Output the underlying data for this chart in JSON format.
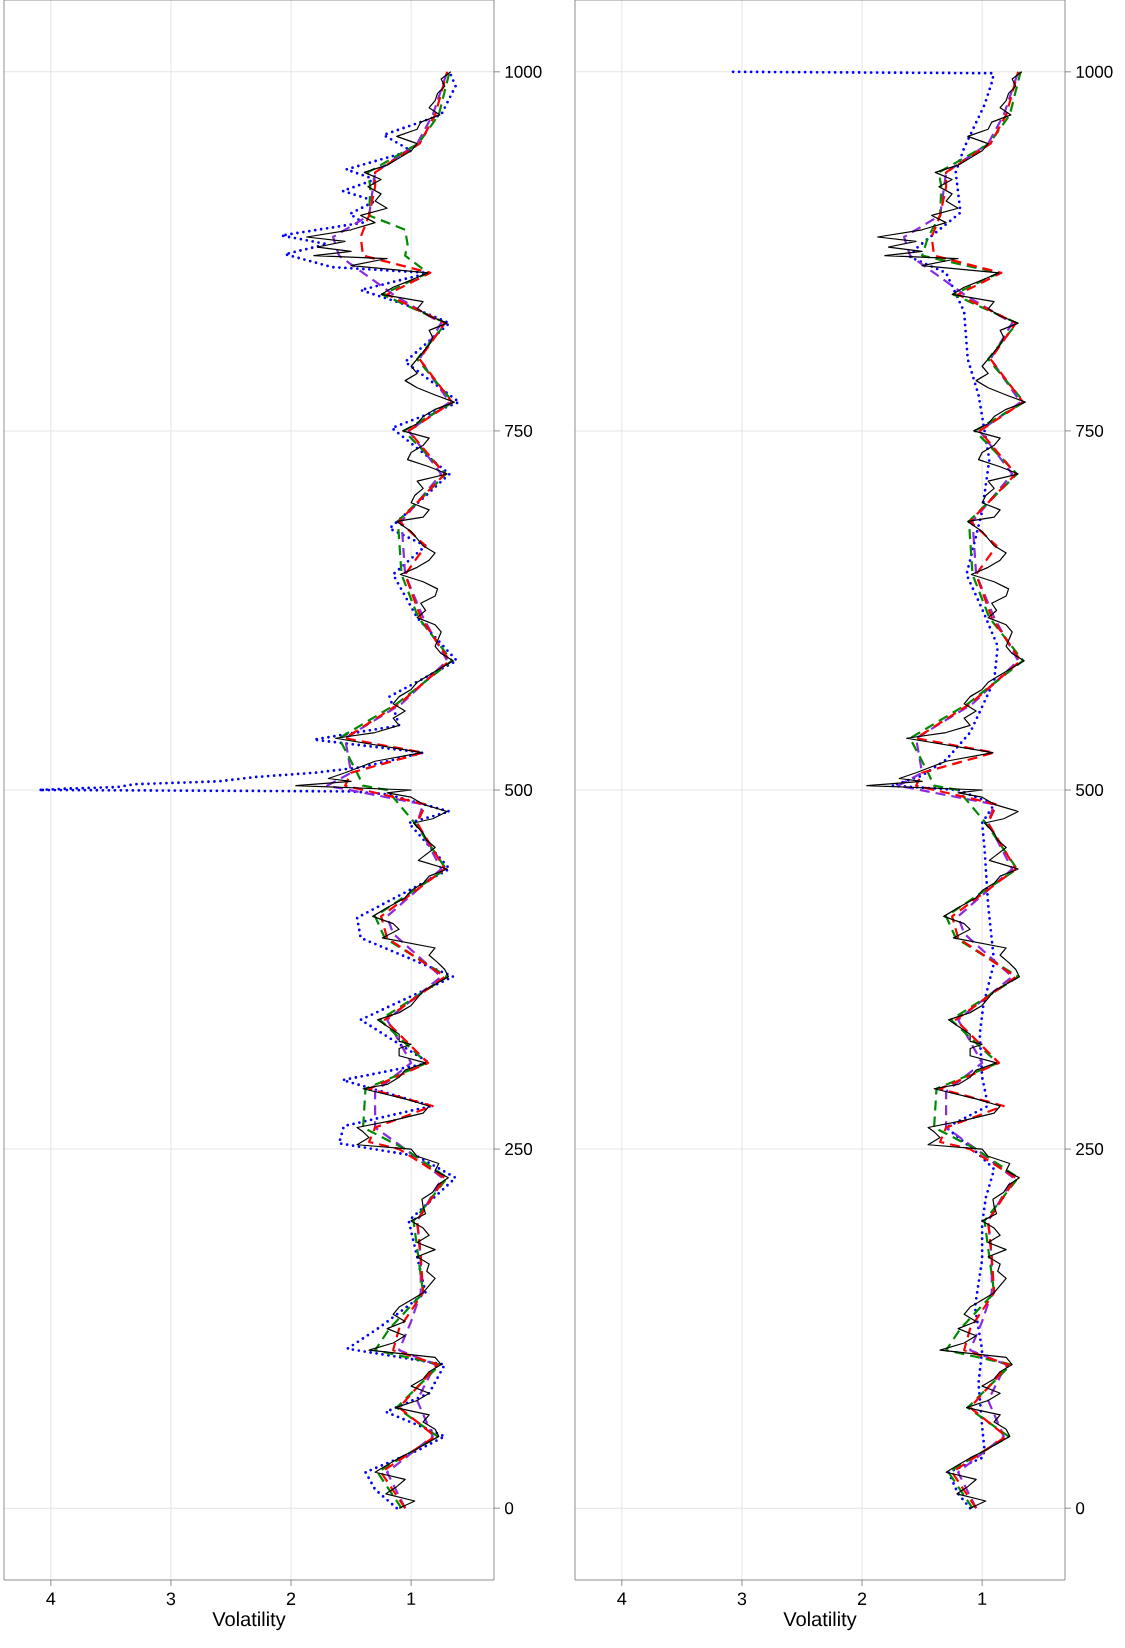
{
  "chart_data": [
    {
      "type": "line",
      "xlabel": "Volatility",
      "grid": true,
      "xlim": [
        4.39,
        0.31
      ],
      "ylim": [
        -50,
        1050
      ],
      "xticks": [
        1,
        2,
        3,
        4
      ],
      "yticks": [
        0,
        250,
        500,
        750,
        1000
      ],
      "series": [
        {
          "color": "#0000ff",
          "line_style": "dotted",
          "values": [
            0,
            13,
            25,
            40,
            50,
            67,
            80,
            100,
            111,
            126,
            150,
            175,
            200,
            230,
            245,
            254,
            266,
            280,
            298,
            310,
            340,
            370,
            397,
            411,
            445,
            477,
            485,
            497,
            499,
            500,
            501,
            502,
            504,
            506,
            509,
            512,
            516,
            520,
            526,
            535,
            545,
            565,
            590,
            620,
            650,
            670,
            682,
            720,
            752,
            770,
            798,
            825,
            838,
            848,
            860,
            864,
            873,
            880,
            886,
            895,
            901,
            910,
            917,
            925,
            932,
            945,
            956,
            970,
            990,
            1000
          ],
          "x": [
            1.12,
            1.3,
            1.38,
            0.95,
            0.72,
            1.21,
            0.85,
            0.72,
            1.53,
            1.26,
            0.88,
            0.95,
            1.02,
            0.63,
            0.95,
            1.6,
            1.56,
            0.83,
            1.57,
            0.85,
            1.42,
            0.65,
            1.42,
            1.45,
            0.68,
            1.02,
            0.68,
            1.2,
            1.5,
            4.1,
            3.85,
            3.45,
            3.3,
            2.6,
            2.3,
            1.8,
            1.4,
            1.2,
            0.9,
            1.81,
            1.1,
            1.18,
            0.62,
            0.95,
            1.15,
            0.88,
            1.18,
            0.68,
            1.16,
            0.6,
            1.05,
            0.68,
            1.05,
            1.42,
            0.85,
            1.66,
            2.05,
            1.7,
            2.08,
            1.4,
            1.51,
            1.3,
            1.57,
            1.3,
            1.54,
            1.0,
            1.23,
            0.75,
            0.63,
            0.68
          ]
        },
        {
          "color": "#8a2be2",
          "line_style": "dashed",
          "values": [
            0,
            25,
            50,
            75,
            100,
            110,
            130,
            150,
            175,
            200,
            230,
            250,
            265,
            290,
            310,
            340,
            370,
            400,
            412,
            445,
            477,
            490,
            503,
            512,
            536,
            560,
            590,
            620,
            650,
            687,
            720,
            750,
            770,
            800,
            825,
            845,
            872,
            885,
            900,
            930,
            950,
            970,
            1000
          ],
          "x": [
            1.05,
            1.2,
            0.82,
            0.95,
            0.8,
            1.1,
            1.0,
            0.92,
            0.92,
            0.95,
            0.74,
            1.05,
            1.3,
            1.3,
            1.0,
            1.2,
            0.75,
            1.15,
            1.2,
            0.75,
            0.95,
            0.9,
            1.7,
            1.5,
            1.55,
            1.08,
            0.7,
            0.9,
            1.05,
            1.08,
            0.75,
            1.02,
            0.68,
            0.93,
            0.75,
            1.15,
            1.6,
            1.65,
            1.35,
            1.3,
            0.95,
            0.82,
            0.7
          ]
        },
        {
          "color": "#008b00",
          "line_style": "dashed",
          "values": [
            0,
            25,
            50,
            70,
            100,
            110,
            125,
            150,
            175,
            200,
            230,
            250,
            265,
            292,
            310,
            340,
            370,
            397,
            412,
            445,
            477,
            500,
            503,
            512,
            536,
            560,
            590,
            620,
            650,
            687,
            720,
            750,
            770,
            800,
            825,
            845,
            860,
            872,
            880,
            890,
            900,
            920,
            930,
            950,
            970,
            1000
          ],
          "x": [
            1.08,
            1.28,
            0.78,
            1.12,
            0.76,
            1.3,
            1.18,
            0.9,
            0.94,
            0.98,
            0.7,
            1.05,
            1.4,
            1.38,
            0.87,
            1.26,
            0.7,
            1.22,
            1.3,
            0.71,
            0.97,
            1.2,
            1.4,
            1.45,
            1.6,
            1.12,
            0.66,
            0.94,
            1.08,
            1.11,
            0.71,
            1.06,
            0.65,
            0.95,
            0.71,
            1.24,
            0.86,
            1.05,
            1.03,
            1.05,
            1.35,
            1.34,
            1.36,
            0.94,
            0.77,
            0.68
          ]
        },
        {
          "color": "#ff0000",
          "line_style": "dashed",
          "values": [
            0,
            25,
            50,
            70,
            100,
            110,
            125,
            150,
            175,
            200,
            230,
            250,
            255,
            265,
            280,
            292,
            310,
            340,
            370,
            397,
            412,
            445,
            477,
            490,
            503,
            512,
            526,
            536,
            560,
            590,
            620,
            650,
            670,
            687,
            720,
            750,
            770,
            800,
            825,
            845,
            860,
            872,
            885,
            900,
            920,
            930,
            950,
            970,
            1000
          ],
          "x": [
            1.05,
            1.25,
            0.8,
            1.1,
            0.78,
            1.15,
            1.1,
            0.9,
            0.92,
            0.95,
            0.72,
            1.1,
            1.35,
            1.3,
            0.82,
            1.35,
            0.86,
            1.22,
            0.72,
            1.2,
            1.25,
            0.72,
            0.95,
            0.88,
            1.55,
            1.5,
            0.9,
            1.55,
            1.1,
            0.68,
            0.92,
            1.05,
            0.88,
            1.1,
            0.72,
            1.02,
            0.66,
            0.93,
            0.72,
            1.2,
            0.84,
            1.4,
            1.42,
            1.35,
            1.3,
            1.3,
            0.93,
            0.8,
            0.7
          ]
        },
        {
          "color": "#000000",
          "line_style": "solid",
          "values": [
            0,
            5,
            10,
            15,
            20,
            25,
            30,
            35,
            40,
            50,
            55,
            60,
            65,
            70,
            75,
            80,
            85,
            90,
            95,
            100,
            105,
            110,
            115,
            120,
            125,
            130,
            135,
            140,
            145,
            150,
            160,
            165,
            170,
            175,
            180,
            185,
            190,
            195,
            200,
            205,
            210,
            215,
            220,
            225,
            230,
            235,
            240,
            245,
            250,
            253,
            258,
            262,
            265,
            270,
            275,
            280,
            285,
            292,
            295,
            300,
            305,
            310,
            315,
            320,
            323,
            325,
            330,
            340,
            345,
            350,
            360,
            370,
            375,
            380,
            385,
            390,
            397,
            403,
            407,
            412,
            418,
            425,
            430,
            435,
            440,
            445,
            451,
            460,
            465,
            470,
            477,
            480,
            485,
            490,
            495,
            498,
            500,
            503,
            506,
            508,
            512,
            520,
            526,
            536,
            540,
            545,
            550,
            555,
            560,
            565,
            570,
            575,
            580,
            590,
            595,
            600,
            610,
            615,
            620,
            625,
            630,
            635,
            640,
            645,
            650,
            655,
            660,
            665,
            670,
            680,
            687,
            690,
            695,
            700,
            705,
            710,
            715,
            720,
            725,
            730,
            735,
            740,
            745,
            750,
            755,
            760,
            765,
            770,
            775,
            780,
            785,
            790,
            795,
            800,
            805,
            810,
            815,
            820,
            825,
            830,
            835,
            840,
            845,
            850,
            855,
            860,
            865,
            870,
            872,
            875,
            878,
            882,
            885,
            890,
            895,
            900,
            905,
            910,
            915,
            920,
            925,
            930,
            935,
            940,
            945,
            950,
            955,
            960,
            965,
            970,
            975,
            980,
            985,
            990,
            995,
            1000
          ],
          "x": [
            1.1,
            0.97,
            1.21,
            1.12,
            1.05,
            1.3,
            1.2,
            1.1,
            0.98,
            0.77,
            0.8,
            0.9,
            0.85,
            1.13,
            0.95,
            0.85,
            1.0,
            0.9,
            0.85,
            0.75,
            0.8,
            1.35,
            1.15,
            1.05,
            1.2,
            1.05,
            1.15,
            1.1,
            1.0,
            0.9,
            0.8,
            0.87,
            0.85,
            0.95,
            0.8,
            0.95,
            0.85,
            0.9,
            1.0,
            0.88,
            0.9,
            0.91,
            0.82,
            0.78,
            0.69,
            0.8,
            0.77,
            0.95,
            1.0,
            1.45,
            1.35,
            1.4,
            1.45,
            1.15,
            0.9,
            0.85,
            1.05,
            1.4,
            1.2,
            1.1,
            1.05,
            0.88,
            1.1,
            1.1,
            1.0,
            1.1,
            1.1,
            1.28,
            1.1,
            1.0,
            0.9,
            0.69,
            0.72,
            0.78,
            0.85,
            0.8,
            1.24,
            1.1,
            1.15,
            1.32,
            1.2,
            1.05,
            1.0,
            0.9,
            0.85,
            0.7,
            0.94,
            0.8,
            0.87,
            0.9,
            0.98,
            0.82,
            0.7,
            0.9,
            1.0,
            1.2,
            1.0,
            1.96,
            1.5,
            1.69,
            1.55,
            1.3,
            0.91,
            1.63,
            1.3,
            1.1,
            1.15,
            1.05,
            1.15,
            1.1,
            1.0,
            0.95,
            0.85,
            0.65,
            0.75,
            0.8,
            0.75,
            0.8,
            0.95,
            0.88,
            0.92,
            0.8,
            0.78,
            0.9,
            1.09,
            0.95,
            0.85,
            0.8,
            0.9,
            1.0,
            1.12,
            0.9,
            0.85,
            1.0,
            0.97,
            0.9,
            0.95,
            0.7,
            0.85,
            1.03,
            1.0,
            0.9,
            0.85,
            1.07,
            0.95,
            0.9,
            0.8,
            0.64,
            0.8,
            0.95,
            1.05,
            0.95,
            1.0,
            0.95,
            0.9,
            0.85,
            0.82,
            0.85,
            0.7,
            0.85,
            0.95,
            0.9,
            1.25,
            1.15,
            1.0,
            0.86,
            1.5,
            1.2,
            1.81,
            1.5,
            1.78,
            1.55,
            1.87,
            1.5,
            1.3,
            1.42,
            1.2,
            1.3,
            1.25,
            1.36,
            1.25,
            1.39,
            1.2,
            1.1,
            1.0,
            0.95,
            1.12,
            0.95,
            0.92,
            0.76,
            0.85,
            0.8,
            0.78,
            0.72,
            0.75,
            0.67
          ]
        }
      ]
    },
    {
      "type": "line",
      "xlabel": "Volatility",
      "grid": true,
      "xlim": [
        4.39,
        0.31
      ],
      "ylim": [
        -50,
        1050
      ],
      "xticks": [
        1,
        2,
        3,
        4
      ],
      "yticks": [
        0,
        250,
        500,
        750,
        1000
      ],
      "series": [
        {
          "color": "#0000ff",
          "line_style": "dotted",
          "values": [
            0,
            10,
            25,
            35,
            40,
            57,
            87,
            110,
            140,
            173,
            198,
            216,
            236,
            248,
            265,
            280,
            300,
            330,
            350,
            380,
            420,
            459,
            477,
            490,
            500,
            503,
            510,
            521,
            540,
            576,
            600,
            626,
            650,
            694,
            730,
            775,
            800,
            833,
            860,
            871,
            877,
            902,
            930,
            947,
            977,
            995,
            999,
            1000
          ],
          "x": [
            1.1,
            1.2,
            1.28,
            1.0,
            0.98,
            1.0,
            1.03,
            1.0,
            1.06,
            1.0,
            1.0,
            0.97,
            0.9,
            1.05,
            1.3,
            0.95,
            1.0,
            1.02,
            0.99,
            0.9,
            0.95,
            0.98,
            1.0,
            0.9,
            1.2,
            1.75,
            1.5,
            1.3,
            1.1,
            0.9,
            0.87,
            1.0,
            1.13,
            1.0,
            0.94,
            1.03,
            1.12,
            1.15,
            1.3,
            1.6,
            1.55,
            1.18,
            1.22,
            1.15,
            0.98,
            0.91,
            0.91,
            3.12
          ]
        },
        {
          "color": "#8a2be2",
          "line_style": "dashed",
          "values": [
            0,
            25,
            50,
            75,
            100,
            110,
            130,
            150,
            175,
            200,
            230,
            250,
            265,
            290,
            310,
            340,
            370,
            400,
            412,
            445,
            477,
            490,
            503,
            512,
            536,
            560,
            590,
            620,
            650,
            687,
            720,
            750,
            770,
            800,
            825,
            845,
            872,
            885,
            900,
            930,
            950,
            970,
            1000
          ],
          "x": [
            1.05,
            1.2,
            0.82,
            0.95,
            0.8,
            1.1,
            1.0,
            0.92,
            0.92,
            0.95,
            0.74,
            1.05,
            1.3,
            1.3,
            1.0,
            1.2,
            0.75,
            1.15,
            1.2,
            0.75,
            0.95,
            0.9,
            1.7,
            1.5,
            1.55,
            1.08,
            0.7,
            0.9,
            1.05,
            1.08,
            0.75,
            1.02,
            0.68,
            0.93,
            0.75,
            1.15,
            1.6,
            1.65,
            1.35,
            1.3,
            0.95,
            0.82,
            0.7
          ]
        },
        {
          "color": "#008b00",
          "line_style": "dashed",
          "values": [
            0,
            25,
            50,
            70,
            100,
            110,
            125,
            150,
            175,
            200,
            230,
            250,
            265,
            292,
            310,
            340,
            370,
            397,
            412,
            445,
            477,
            500,
            503,
            512,
            536,
            560,
            590,
            620,
            650,
            687,
            720,
            750,
            770,
            800,
            825,
            845,
            860,
            872,
            885,
            900,
            920,
            930,
            950,
            970,
            1000
          ],
          "x": [
            1.08,
            1.28,
            0.78,
            1.12,
            0.76,
            1.3,
            1.18,
            0.9,
            0.94,
            0.98,
            0.7,
            1.05,
            1.4,
            1.38,
            0.87,
            1.26,
            0.7,
            1.22,
            1.3,
            0.71,
            0.97,
            1.2,
            1.4,
            1.45,
            1.6,
            1.12,
            0.66,
            0.94,
            1.08,
            1.11,
            0.71,
            1.06,
            0.65,
            0.95,
            0.71,
            1.24,
            0.86,
            1.5,
            1.45,
            1.35,
            1.34,
            1.36,
            0.94,
            0.77,
            0.68
          ]
        },
        {
          "color": "#ff0000",
          "line_style": "dashed",
          "values": [
            0,
            25,
            50,
            70,
            100,
            110,
            125,
            150,
            175,
            200,
            230,
            250,
            255,
            265,
            280,
            292,
            310,
            340,
            370,
            397,
            412,
            445,
            477,
            490,
            503,
            512,
            526,
            536,
            560,
            590,
            620,
            650,
            670,
            687,
            720,
            750,
            770,
            800,
            825,
            845,
            860,
            872,
            885,
            900,
            920,
            930,
            950,
            970,
            1000
          ],
          "x": [
            1.05,
            1.25,
            0.8,
            1.1,
            0.78,
            1.15,
            1.1,
            0.9,
            0.92,
            0.95,
            0.72,
            1.1,
            1.35,
            1.3,
            0.82,
            1.35,
            0.86,
            1.22,
            0.72,
            1.2,
            1.25,
            0.72,
            0.95,
            0.88,
            1.55,
            1.5,
            0.9,
            1.55,
            1.1,
            0.68,
            0.92,
            1.05,
            0.88,
            1.1,
            0.72,
            1.02,
            0.66,
            0.93,
            0.72,
            1.2,
            0.84,
            1.4,
            1.42,
            1.35,
            1.3,
            1.3,
            0.93,
            0.8,
            0.7
          ]
        },
        {
          "color": "#000000",
          "line_style": "solid",
          "values": [
            0,
            5,
            10,
            15,
            20,
            25,
            30,
            35,
            40,
            50,
            55,
            60,
            65,
            70,
            75,
            80,
            85,
            90,
            95,
            100,
            105,
            110,
            115,
            120,
            125,
            130,
            135,
            140,
            145,
            150,
            160,
            165,
            170,
            175,
            180,
            185,
            190,
            195,
            200,
            205,
            210,
            215,
            220,
            225,
            230,
            235,
            240,
            245,
            250,
            253,
            258,
            262,
            265,
            270,
            275,
            280,
            285,
            292,
            295,
            300,
            305,
            310,
            315,
            320,
            323,
            325,
            330,
            340,
            345,
            350,
            360,
            370,
            375,
            380,
            385,
            390,
            397,
            403,
            407,
            412,
            418,
            425,
            430,
            435,
            440,
            445,
            451,
            460,
            465,
            470,
            477,
            480,
            485,
            490,
            495,
            498,
            500,
            503,
            506,
            508,
            512,
            520,
            526,
            536,
            540,
            545,
            550,
            555,
            560,
            565,
            570,
            575,
            580,
            590,
            595,
            600,
            610,
            615,
            620,
            625,
            630,
            635,
            640,
            645,
            650,
            655,
            660,
            665,
            670,
            680,
            687,
            690,
            695,
            700,
            705,
            710,
            715,
            720,
            725,
            730,
            735,
            740,
            745,
            750,
            755,
            760,
            765,
            770,
            775,
            780,
            785,
            790,
            795,
            800,
            805,
            810,
            815,
            820,
            825,
            830,
            835,
            840,
            845,
            850,
            855,
            860,
            865,
            870,
            872,
            875,
            878,
            882,
            885,
            890,
            895,
            900,
            905,
            910,
            915,
            920,
            925,
            930,
            935,
            940,
            945,
            950,
            955,
            960,
            965,
            970,
            975,
            980,
            985,
            990,
            995,
            1000
          ],
          "x": [
            1.1,
            0.97,
            1.21,
            1.12,
            1.05,
            1.3,
            1.2,
            1.1,
            0.98,
            0.77,
            0.8,
            0.9,
            0.85,
            1.13,
            0.95,
            0.85,
            1.0,
            0.9,
            0.85,
            0.75,
            0.8,
            1.35,
            1.15,
            1.05,
            1.2,
            1.05,
            1.15,
            1.1,
            1.0,
            0.9,
            0.8,
            0.87,
            0.85,
            0.95,
            0.8,
            0.95,
            0.85,
            0.9,
            1.0,
            0.88,
            0.9,
            0.91,
            0.82,
            0.78,
            0.69,
            0.8,
            0.77,
            0.95,
            1.0,
            1.45,
            1.35,
            1.4,
            1.45,
            1.15,
            0.9,
            0.85,
            1.05,
            1.4,
            1.2,
            1.1,
            1.05,
            0.88,
            1.1,
            1.1,
            1.0,
            1.1,
            1.1,
            1.28,
            1.1,
            1.0,
            0.9,
            0.69,
            0.72,
            0.78,
            0.85,
            0.8,
            1.24,
            1.1,
            1.15,
            1.32,
            1.2,
            1.05,
            1.0,
            0.9,
            0.85,
            0.7,
            0.94,
            0.8,
            0.87,
            0.9,
            0.98,
            0.82,
            0.7,
            0.9,
            1.0,
            1.2,
            1.0,
            1.96,
            1.5,
            1.69,
            1.55,
            1.3,
            0.91,
            1.63,
            1.3,
            1.1,
            1.15,
            1.05,
            1.15,
            1.1,
            1.0,
            0.95,
            0.85,
            0.65,
            0.75,
            0.8,
            0.75,
            0.8,
            0.95,
            0.88,
            0.92,
            0.8,
            0.78,
            0.9,
            1.09,
            0.95,
            0.85,
            0.8,
            0.9,
            1.0,
            1.12,
            0.9,
            0.85,
            1.0,
            0.97,
            0.9,
            0.95,
            0.7,
            0.85,
            1.03,
            1.0,
            0.9,
            0.85,
            1.07,
            0.95,
            0.9,
            0.8,
            0.64,
            0.8,
            0.95,
            1.05,
            0.95,
            1.0,
            0.95,
            0.9,
            0.85,
            0.82,
            0.85,
            0.7,
            0.85,
            0.95,
            0.9,
            1.25,
            1.15,
            1.0,
            0.86,
            1.5,
            1.2,
            1.81,
            1.5,
            1.78,
            1.55,
            1.87,
            1.5,
            1.3,
            1.42,
            1.2,
            1.3,
            1.25,
            1.36,
            1.25,
            1.39,
            1.2,
            1.1,
            1.0,
            0.95,
            1.12,
            0.95,
            0.92,
            0.76,
            0.85,
            0.8,
            0.78,
            0.72,
            0.75,
            0.67
          ]
        }
      ]
    }
  ]
}
